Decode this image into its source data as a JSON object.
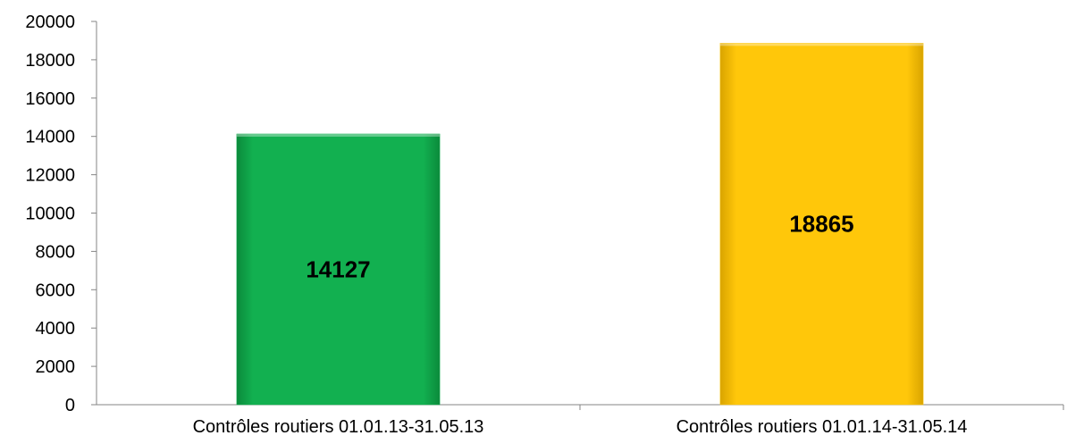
{
  "chart_data": {
    "type": "bar",
    "title": "",
    "xlabel": "",
    "ylabel": "",
    "categories": [
      "Contrôles routiers 01.01.13-31.05.13",
      "Contrôles routiers 01.01.14-31.05.14"
    ],
    "values": [
      14127,
      18865
    ],
    "data_labels": [
      "14127",
      "18865"
    ],
    "colors": [
      "#12b050",
      "#ffc70a"
    ],
    "ylim": [
      0,
      20000
    ],
    "yticks": [
      0,
      2000,
      4000,
      6000,
      8000,
      10000,
      12000,
      14000,
      16000,
      18000,
      20000
    ],
    "ytick_labels": [
      "0",
      "2000",
      "4000",
      "6000",
      "8000",
      "10000",
      "12000",
      "14000",
      "16000",
      "18000",
      "20000"
    ],
    "grid": false,
    "legend": "none"
  }
}
